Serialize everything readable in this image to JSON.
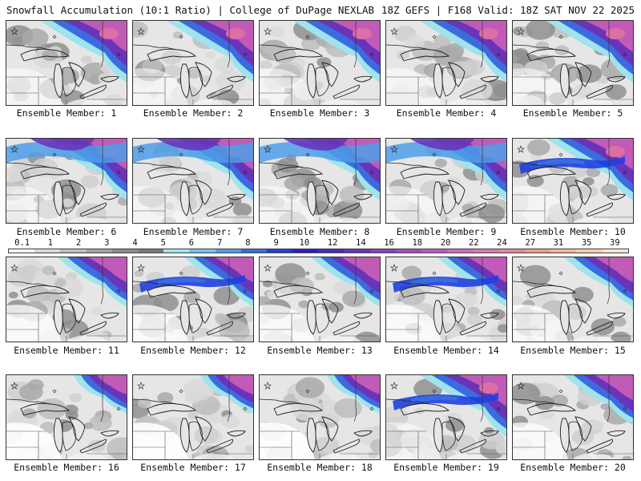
{
  "header": {
    "left_title": "Snowfall Accumulation (10:1 Ratio) | College of DuPage NEXLAB",
    "right_title": "18Z GEFS | F168 Valid: 18Z SAT NOV 22 2025"
  },
  "colorbar": {
    "labels": [
      "0.1",
      "1",
      "2",
      "3",
      "4",
      "5",
      "6",
      "7",
      "8",
      "9",
      "10",
      "12",
      "14",
      "16",
      "18",
      "20",
      "22",
      "24",
      "27",
      "31",
      "35",
      "39"
    ],
    "colors": [
      "#f2f2f2",
      "#d9d9d9",
      "#bdbdbd",
      "#a3a3a3",
      "#8c8c8c",
      "#7a7a7a",
      "#9fe3ec",
      "#6fc6ee",
      "#4d9de8",
      "#3a6ce0",
      "#1f3fe0",
      "#2b1fc8",
      "#4a2ab8",
      "#6a34b8",
      "#8a3ec0",
      "#a349c4",
      "#bd58c6",
      "#d06abd",
      "#dc7aa8",
      "#e48a98",
      "#ec9c8c",
      "#f2b49c",
      "#f7cbb2",
      "#fbe2cf"
    ]
  },
  "panels": [
    {
      "caption": "Ensemble Member: 1",
      "intensity": "high",
      "band": "north"
    },
    {
      "caption": "Ensemble Member: 2",
      "intensity": "high",
      "band": "north"
    },
    {
      "caption": "Ensemble Member: 3",
      "intensity": "high",
      "band": "north"
    },
    {
      "caption": "Ensemble Member: 4",
      "intensity": "high",
      "band": "north"
    },
    {
      "caption": "Ensemble Member: 5",
      "intensity": "high",
      "band": "north"
    },
    {
      "caption": "Ensemble Member: 6",
      "intensity": "high",
      "band": "wide"
    },
    {
      "caption": "Ensemble Member: 7",
      "intensity": "high",
      "band": "wide"
    },
    {
      "caption": "Ensemble Member: 8",
      "intensity": "high",
      "band": "wide"
    },
    {
      "caption": "Ensemble Member: 9",
      "intensity": "high",
      "band": "wide"
    },
    {
      "caption": "Ensemble Member: 10",
      "intensity": "high",
      "band": "lake"
    },
    {
      "caption": "Ensemble Member: 11",
      "intensity": "medium",
      "band": "north"
    },
    {
      "caption": "Ensemble Member: 12",
      "intensity": "medium",
      "band": "lake"
    },
    {
      "caption": "Ensemble Member: 13",
      "intensity": "medium",
      "band": "north"
    },
    {
      "caption": "Ensemble Member: 14",
      "intensity": "medium",
      "band": "lake"
    },
    {
      "caption": "Ensemble Member: 15",
      "intensity": "medium",
      "band": "north"
    },
    {
      "caption": "Ensemble Member: 16",
      "intensity": "low",
      "band": "north"
    },
    {
      "caption": "Ensemble Member: 17",
      "intensity": "low",
      "band": "north"
    },
    {
      "caption": "Ensemble Member: 18",
      "intensity": "low",
      "band": "north"
    },
    {
      "caption": "Ensemble Member: 19",
      "intensity": "high",
      "band": "lake"
    },
    {
      "caption": "Ensemble Member: 20",
      "intensity": "medium",
      "band": "north"
    }
  ]
}
